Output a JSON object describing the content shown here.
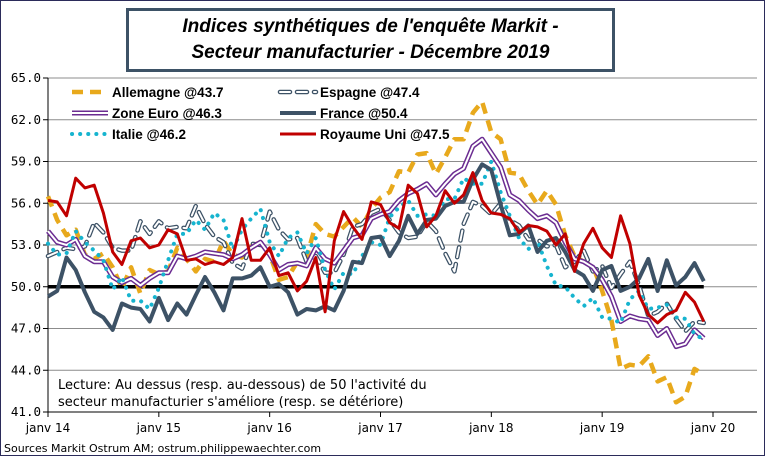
{
  "chart_data": {
    "type": "line",
    "title_lines": [
      "Indices synthétiques de l'enquête Markit -",
      "Secteur manufacturier - Décembre 2019"
    ],
    "xlabel": "",
    "ylabel": "",
    "ylim": [
      41.0,
      65.0
    ],
    "yticks": [
      "65.0",
      "62.0",
      "59.0",
      "56.0",
      "53.0",
      "50.0",
      "47.0",
      "44.0",
      "41.0"
    ],
    "ytick_values": [
      65,
      62,
      59,
      56,
      53,
      50,
      47,
      44,
      41
    ],
    "xticks": [
      "janv 14",
      "janv 15",
      "janv 16",
      "janv 17",
      "janv 18",
      "janv 19",
      "janv 20"
    ],
    "x_start": "janv 14",
    "x_frequency": "monthly",
    "reference_line": 50.0,
    "grid": true,
    "legend_placement": "top-left",
    "annotation": [
      "Lecture: Au dessus (resp. au-dessous) de 50 l'activité du",
      "secteur manufacturier s'améliore (resp. se détériore)"
    ],
    "source": "Sources Markit Ostrum AM; ostrum.philippewaechter.com",
    "series": [
      {
        "name": "Allemagne @43.7",
        "color": "#e8a91c",
        "style": "dashed",
        "values": [
          56.5,
          54.8,
          53.7,
          54.1,
          52.3,
          52.0,
          52.4,
          51.4,
          49.9,
          51.4,
          49.5,
          51.2,
          50.9,
          51.1,
          52.8,
          52.0,
          51.1,
          52.0,
          51.8,
          53.3,
          52.3,
          52.1,
          52.9,
          53.2,
          52.3,
          50.5,
          50.7,
          51.8,
          52.1,
          54.5,
          53.8,
          53.6,
          54.3,
          55.0,
          54.3,
          55.6,
          56.4,
          56.8,
          58.3,
          58.2,
          59.5,
          59.6,
          58.1,
          59.3,
          60.6,
          60.6,
          62.5,
          63.3,
          61.1,
          60.6,
          58.2,
          58.1,
          56.9,
          55.9,
          56.9,
          55.9,
          53.7,
          52.2,
          51.8,
          51.5,
          49.7,
          47.6,
          44.1,
          44.4,
          44.3,
          45.0,
          43.2,
          43.5,
          41.7,
          42.1,
          44.1,
          43.7
        ]
      },
      {
        "name": "Espagne @47.4",
        "color": "#3d5266",
        "style": "double-dashed",
        "values": [
          52.2,
          52.5,
          52.8,
          52.7,
          52.9,
          54.6,
          53.9,
          52.8,
          52.6,
          52.6,
          54.7,
          53.8,
          54.7,
          54.2,
          54.3,
          54.2,
          55.8,
          54.5,
          53.6,
          53.2,
          51.7,
          51.3,
          53.1,
          53.0,
          55.4,
          54.1,
          53.4,
          53.5,
          51.8,
          52.2,
          51.0,
          51.0,
          52.3,
          54.3,
          54.5,
          55.3,
          55.6,
          54.8,
          53.9,
          53.5,
          53.6,
          54.7,
          54.0,
          52.4,
          51.1,
          54.5,
          56.1,
          55.8,
          55.2,
          56.0,
          54.8,
          54.4,
          53.4,
          53.4,
          52.9,
          53.0,
          51.4,
          51.8,
          52.6,
          51.1,
          51.5,
          49.9,
          50.9,
          51.8,
          50.1,
          47.9,
          48.2,
          48.8,
          47.7,
          46.8,
          47.5,
          47.4
        ]
      },
      {
        "name": "Zone Euro @46.3",
        "color": "#6b2c91",
        "style": "double",
        "values": [
          54.0,
          53.2,
          53.0,
          53.4,
          52.2,
          51.8,
          51.8,
          50.7,
          50.3,
          50.6,
          50.1,
          50.6,
          51.0,
          51.0,
          52.2,
          52.0,
          52.2,
          52.5,
          52.4,
          52.3,
          52.0,
          52.3,
          52.8,
          53.2,
          52.3,
          51.2,
          51.6,
          51.7,
          51.5,
          52.8,
          52.0,
          51.7,
          52.6,
          53.5,
          53.7,
          54.9,
          55.2,
          55.4,
          56.2,
          56.7,
          57.0,
          57.4,
          56.6,
          57.4,
          58.1,
          58.5,
          60.1,
          60.6,
          59.6,
          58.6,
          56.6,
          56.2,
          55.5,
          54.9,
          55.1,
          54.6,
          53.2,
          52.0,
          51.8,
          51.4,
          50.5,
          49.3,
          47.5,
          47.9,
          47.7,
          47.6,
          46.5,
          47.0,
          45.7,
          45.9,
          46.9,
          46.3
        ]
      },
      {
        "name": "France @50.4",
        "color": "#3d5266",
        "style": "solid-thick",
        "values": [
          49.3,
          49.7,
          52.1,
          51.2,
          49.6,
          48.2,
          47.8,
          46.9,
          48.8,
          48.5,
          48.4,
          47.5,
          49.2,
          47.6,
          48.8,
          48.0,
          49.4,
          50.7,
          49.6,
          48.3,
          50.6,
          50.6,
          50.8,
          51.4,
          50.0,
          50.2,
          49.6,
          48.0,
          48.4,
          48.3,
          48.6,
          48.3,
          49.7,
          51.8,
          51.7,
          53.5,
          53.6,
          52.2,
          53.3,
          55.1,
          53.8,
          54.8,
          54.9,
          55.8,
          56.1,
          56.1,
          57.7,
          58.8,
          58.4,
          55.9,
          53.7,
          53.8,
          54.4,
          52.5,
          53.3,
          53.5,
          52.5,
          51.2,
          50.8,
          49.7,
          51.2,
          51.5,
          49.7,
          50.0,
          50.6,
          52.0,
          49.7,
          51.9,
          50.1,
          50.7,
          51.7,
          50.4
        ]
      },
      {
        "name": "Italie @46.2",
        "color": "#16b4cf",
        "style": "dotted",
        "values": [
          53.1,
          52.3,
          52.4,
          54.0,
          53.2,
          52.6,
          51.9,
          49.8,
          50.7,
          49.0,
          49.0,
          48.4,
          49.9,
          51.9,
          53.8,
          53.8,
          54.8,
          54.1,
          55.3,
          54.8,
          52.7,
          54.1,
          54.9,
          55.6,
          53.2,
          52.2,
          53.5,
          53.9,
          52.4,
          53.5,
          51.2,
          49.8,
          51.0,
          50.9,
          52.2,
          53.2,
          53.0,
          55.0,
          55.7,
          56.2,
          55.1,
          55.2,
          55.1,
          56.3,
          56.3,
          57.8,
          57.4,
          57.4,
          59.0,
          56.8,
          55.1,
          53.5,
          52.7,
          53.3,
          51.5,
          50.1,
          50.0,
          49.2,
          48.6,
          49.2,
          47.8,
          47.7,
          47.4,
          49.1,
          49.7,
          48.4,
          48.5,
          48.7,
          47.8,
          47.7,
          46.6,
          46.2
        ]
      },
      {
        "name": "Royaume Uni @47.5",
        "color": "#c00000",
        "style": "solid",
        "values": [
          56.2,
          56.1,
          55.1,
          57.8,
          57.1,
          57.3,
          55.3,
          52.5,
          51.6,
          53.3,
          53.5,
          52.8,
          53.0,
          54.1,
          53.8,
          51.9,
          52.0,
          51.6,
          51.8,
          51.6,
          52.1,
          54.9,
          51.9,
          51.9,
          52.8,
          50.8,
          51.0,
          49.7,
          50.4,
          52.1,
          48.2,
          53.3,
          55.4,
          54.3,
          53.4,
          56.1,
          55.9,
          54.6,
          54.2,
          57.3,
          56.7,
          54.3,
          55.1,
          56.9,
          56.0,
          56.6,
          58.2,
          56.2,
          55.3,
          55.2,
          54.9,
          53.9,
          54.4,
          54.3,
          54.0,
          53.0,
          53.8,
          51.1,
          53.1,
          54.2,
          52.8,
          52.1,
          55.1,
          53.1,
          49.4,
          48.0,
          47.4,
          48.0,
          48.3,
          49.6,
          48.9,
          47.5
        ]
      }
    ]
  }
}
